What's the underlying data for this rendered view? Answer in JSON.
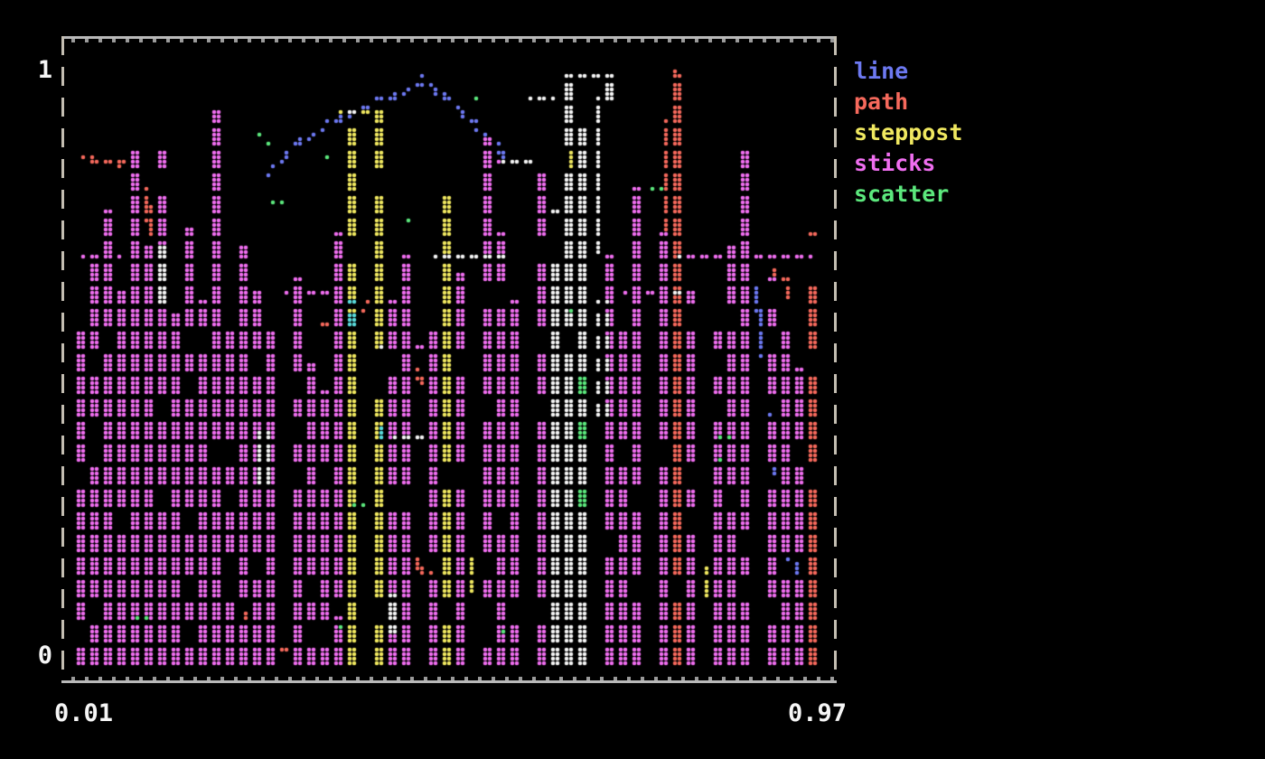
{
  "app": {
    "background": "#000000"
  },
  "axis": {
    "y_top": "1",
    "y_bottom": "0",
    "x_left": "0.01",
    "x_right": "0.97"
  },
  "frame": {
    "border_color": "#b9b9b9",
    "dash_color": "#c4beb2"
  },
  "legend": {
    "items": [
      {
        "label": "line",
        "color": "#6d79f2"
      },
      {
        "label": "path",
        "color": "#f6695c"
      },
      {
        "label": "steppost",
        "color": "#f0e860"
      },
      {
        "label": "sticks",
        "color": "#f06ef0"
      },
      {
        "label": "scatter",
        "color": "#5ce87d"
      }
    ]
  },
  "chart_data": {
    "type": "scatter",
    "title": "",
    "xlabel": "",
    "ylabel": "",
    "xlim": [
      0.01,
      0.97
    ],
    "ylim": [
      0,
      1
    ],
    "grid": false,
    "legend_position": "right",
    "canvas_style": "terminal-braille-dots",
    "colors": {
      "line": "#6d79f2",
      "path": "#f6695c",
      "steppost": "#f0e860",
      "sticks": "#f06ef0",
      "scatter": "#5ce87d",
      "white": "#f5f5f5",
      "cyan": "#5adcdc"
    },
    "render": {
      "seed": 1337,
      "gap_chance": 0.12,
      "dot_radius": 2.3
    },
    "series": [
      {
        "name": "line",
        "style": "line",
        "color_key": "line",
        "segments": [
          [
            [
              0.256,
              0.82
            ],
            [
              0.272,
              0.845
            ],
            [
              0.288,
              0.866
            ],
            [
              0.305,
              0.882
            ],
            [
              0.322,
              0.896
            ],
            [
              0.34,
              0.912
            ],
            [
              0.357,
              0.925
            ],
            [
              0.374,
              0.933
            ],
            [
              0.392,
              0.941
            ],
            [
              0.409,
              0.951
            ],
            [
              0.427,
              0.961
            ],
            [
              0.444,
              0.97
            ],
            [
              0.461,
              0.981
            ],
            [
              0.478,
              0.962
            ],
            [
              0.493,
              0.946
            ],
            [
              0.508,
              0.927
            ],
            [
              0.523,
              0.907
            ],
            [
              0.537,
              0.887
            ],
            [
              0.551,
              0.866
            ],
            [
              0.565,
              0.847
            ],
            [
              0.58,
              0.843
            ],
            [
              0.598,
              0.842
            ]
          ],
          [
            [
              0.906,
              0.4
            ],
            [
              0.916,
              0.34
            ],
            [
              0.924,
              0.27
            ],
            [
              0.932,
              0.2
            ],
            [
              0.941,
              0.135
            ],
            [
              0.951,
              0.075
            ],
            [
              0.96,
              0.045
            ]
          ],
          [
            [
              0.885,
              0.63
            ],
            [
              0.893,
              0.575
            ],
            [
              0.9,
              0.52
            ],
            [
              0.906,
              0.465
            ]
          ]
        ]
      },
      {
        "name": "path",
        "style": "path",
        "color_key": "path",
        "segments": [
          [
            [
              0.016,
              0.853
            ],
            [
              0.03,
              0.843
            ],
            [
              0.046,
              0.843
            ],
            [
              0.062,
              0.84
            ],
            [
              0.075,
              0.843
            ]
          ],
          [
            [
              0.095,
              0.8
            ],
            [
              0.1,
              0.72
            ],
            [
              0.108,
              0.77
            ],
            [
              0.115,
              0.7
            ],
            [
              0.123,
              0.76
            ]
          ],
          [
            [
              0.327,
              0.565
            ],
            [
              0.345,
              0.572
            ],
            [
              0.363,
              0.582
            ],
            [
              0.382,
              0.592
            ]
          ],
          [
            [
              0.438,
              0.487
            ],
            [
              0.452,
              0.472
            ],
            [
              0.468,
              0.455
            ]
          ],
          [
            [
              0.77,
              0.7
            ],
            [
              0.782,
              0.995
            ],
            [
              0.793,
              0.68
            ]
          ],
          [
            [
              0.917,
              0.655
            ],
            [
              0.927,
              0.635
            ],
            [
              0.937,
              0.615
            ]
          ],
          [
            [
              0.222,
              0.068
            ],
            [
              0.231,
              0.047
            ],
            [
              0.242,
              0.022
            ],
            [
              0.258,
              0.013
            ],
            [
              0.276,
              0.012
            ],
            [
              0.292,
              0.012
            ]
          ],
          [
            [
              0.442,
              0.165
            ],
            [
              0.454,
              0.143
            ],
            [
              0.467,
              0.125
            ]
          ]
        ]
      },
      {
        "name": "steppost",
        "style": "steps-post",
        "color_key": "steppost",
        "segments": [
          [
            [
              0.355,
              0.932
            ],
            [
              0.398,
              0.932
            ]
          ],
          [
            [
              0.1,
              0.455
            ],
            [
              0.14,
              0.455
            ],
            [
              0.14,
              0.35
            ],
            [
              0.175,
              0.35
            ]
          ],
          [
            [
              0.405,
              0.363
            ],
            [
              0.47,
              0.363
            ]
          ],
          [
            [
              0.49,
              0.108
            ],
            [
              0.515,
              0.108
            ],
            [
              0.515,
              0.165
            ]
          ],
          [
            [
              0.417,
              0.09
            ],
            [
              0.417,
              0.16
            ]
          ],
          [
            [
              0.568,
              0.19
            ],
            [
              0.568,
              0.285
            ]
          ],
          [
            [
              0.648,
              0.8
            ],
            [
              0.648,
              0.95
            ]
          ],
          [
            [
              0.8,
              0.09
            ],
            [
              0.8,
              0.16
            ]
          ],
          [
            [
              0.83,
              0.1
            ],
            [
              0.83,
              0.15
            ]
          ]
        ]
      },
      {
        "name": "sticks",
        "style": "sticks",
        "color_key": "sticks",
        "columns": [
          {
            "x": 0.012,
            "h": 0.55
          },
          {
            "x": 0.022,
            "h": 0.68
          },
          {
            "x": 0.042,
            "h": 0.75
          },
          {
            "x": 0.058,
            "h": 0.62
          },
          {
            "x": 0.076,
            "h": 0.86
          },
          {
            "x": 0.094,
            "h": 0.7
          },
          {
            "x": 0.112,
            "h": 0.86
          },
          {
            "x": 0.13,
            "h": 0.58
          },
          {
            "x": 0.148,
            "h": 0.73
          },
          {
            "x": 0.168,
            "h": 0.6
          },
          {
            "x": 0.186,
            "h": 0.93
          },
          {
            "x": 0.205,
            "h": 0.55
          },
          {
            "x": 0.225,
            "h": 0.7
          },
          {
            "x": 0.245,
            "h": 0.62
          },
          {
            "x": 0.268,
            "h": 0.55
          },
          {
            "x": 0.288,
            "h": 0.64
          },
          {
            "x": 0.308,
            "h": 0.5
          },
          {
            "x": 0.33,
            "h": 0.45
          },
          {
            "x": 0.352,
            "h": 0.72
          },
          {
            "x": 0.372,
            "h": 0.9,
            "color": "steppost"
          },
          {
            "x": 0.395,
            "h": 0.93,
            "color": "steppost"
          },
          {
            "x": 0.42,
            "h": 0.6
          },
          {
            "x": 0.443,
            "h": 0.68
          },
          {
            "x": 0.465,
            "h": 0.55
          },
          {
            "x": 0.487,
            "h": 0.78,
            "color": "steppost"
          },
          {
            "x": 0.51,
            "h": 0.65
          },
          {
            "x": 0.533,
            "h": 0.88
          },
          {
            "x": 0.556,
            "h": 0.72
          },
          {
            "x": 0.58,
            "h": 0.6
          },
          {
            "x": 0.603,
            "h": 0.82
          },
          {
            "x": 0.625,
            "h": 0.75,
            "color": "white"
          },
          {
            "x": 0.648,
            "h": 0.97,
            "color": "white"
          },
          {
            "x": 0.66,
            "h": 0.75,
            "color": "scatter"
          },
          {
            "x": 0.672,
            "h": 0.9,
            "color": "white"
          },
          {
            "x": 0.695,
            "h": 0.68
          },
          {
            "x": 0.718,
            "h": 0.55
          },
          {
            "x": 0.742,
            "h": 0.8
          },
          {
            "x": 0.765,
            "h": 0.72
          },
          {
            "x": 0.788,
            "h": 0.99,
            "color": "path"
          },
          {
            "x": 0.812,
            "h": 0.62
          },
          {
            "x": 0.835,
            "h": 0.55
          },
          {
            "x": 0.858,
            "h": 0.7
          },
          {
            "x": 0.88,
            "h": 0.86
          },
          {
            "x": 0.902,
            "h": 0.64
          },
          {
            "x": 0.922,
            "h": 0.55
          },
          {
            "x": 0.94,
            "h": 0.48
          },
          {
            "x": 0.958,
            "h": 0.72,
            "color": "path"
          }
        ]
      },
      {
        "name": "scatter",
        "style": "scatter",
        "color_key": "scatter",
        "points": [
          [
            0.247,
            0.889
          ],
          [
            0.254,
            0.878
          ],
          [
            0.33,
            0.853
          ],
          [
            0.528,
            0.94
          ],
          [
            0.266,
            0.776
          ],
          [
            0.758,
            0.792
          ],
          [
            0.847,
            0.371
          ],
          [
            0.846,
            0.328
          ],
          [
            0.348,
            0.049
          ],
          [
            0.565,
            0.042
          ],
          [
            0.444,
            0.742
          ],
          [
            0.655,
            0.588
          ],
          [
            0.092,
            0.055
          ],
          [
            0.372,
            0.255
          ]
        ]
      }
    ],
    "overlap_artifacts": {
      "white_box": {
        "x0": 0.642,
        "x1": 0.692,
        "y_top": 0.985,
        "y_bottom": 0.952
      },
      "white_columns": [
        {
          "x": 0.683,
          "y0": 0.68,
          "y1": 0.95
        },
        {
          "x": 0.69,
          "y0": 0.4,
          "y1": 0.6
        },
        {
          "x": 0.413,
          "y0": 0.04,
          "y1": 0.105
        },
        {
          "x": 0.245,
          "y0": 0.285,
          "y1": 0.38
        },
        {
          "x": 0.112,
          "y0": 0.6,
          "y1": 0.7
        }
      ],
      "white_runs": [
        {
          "y": 0.677,
          "x0": 0.475,
          "x1": 0.565
        },
        {
          "y": 0.363,
          "x0": 0.42,
          "x1": 0.458
        },
        {
          "y": 0.955,
          "x0": 0.6,
          "x1": 0.628
        }
      ],
      "cyan_columns": [
        {
          "x": 0.362,
          "y0": 0.555,
          "y1": 0.6
        },
        {
          "x": 0.402,
          "y0": 0.355,
          "y1": 0.385
        }
      ],
      "magenta_runs": [
        {
          "y": 0.677,
          "x0": 0.012,
          "x1": 0.062
        },
        {
          "y": 0.623,
          "x0": 0.28,
          "x1": 0.35
        },
        {
          "y": 0.522,
          "x0": 0.4,
          "x1": 0.468
        },
        {
          "y": 0.845,
          "x0": 0.54,
          "x1": 0.6
        },
        {
          "y": 0.677,
          "x0": 0.79,
          "x1": 0.963
        },
        {
          "y": 0.623,
          "x0": 0.715,
          "x1": 0.788
        },
        {
          "y": 0.065,
          "x0": 0.29,
          "x1": 0.358
        }
      ]
    }
  }
}
